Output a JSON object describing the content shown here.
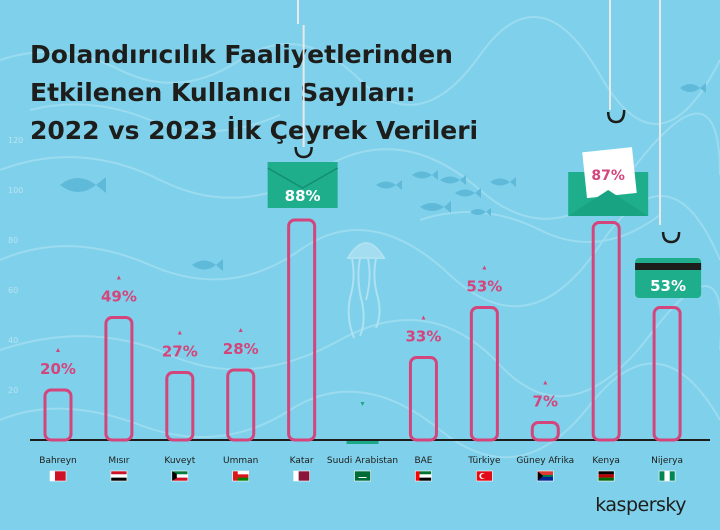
{
  "title_lines": [
    "Dolandırıcılık Faaliyetlerinden",
    "Etkilenen Kullanıcı Sayıları:",
    "2022 vs 2023 İlk Çeyrek Verileri"
  ],
  "brand": "kaspersky",
  "colors": {
    "background": "#7fd0ea",
    "bar_outline": "#d4457c",
    "label": "#d4457c",
    "change_down": "#1aa889",
    "accent_green": "#1fae8c",
    "axis": "#1d1d1b"
  },
  "chart_data": {
    "type": "bar",
    "ylim": [
      0,
      120
    ],
    "y_ticks": [
      20,
      40,
      60,
      80,
      100,
      120
    ],
    "grid": false,
    "categories": [
      "Bahreyn",
      "Mısır",
      "Kuveyt",
      "Umman",
      "Katar",
      "Suudi Arabistan",
      "BAE",
      "Türkiye",
      "Güney Afrika",
      "Kenya",
      "Nijerya"
    ],
    "values": [
      20,
      49,
      27,
      28,
      88,
      0,
      33,
      53,
      7,
      87,
      53
    ],
    "value_labels": [
      "20%",
      "49%",
      "27%",
      "28%",
      "88%",
      "",
      "33%",
      "53%",
      "7%",
      "87%",
      "53%"
    ],
    "direction": [
      "up",
      "up",
      "up",
      "up",
      "up",
      "down",
      "up",
      "up",
      "up",
      "up",
      "up"
    ],
    "flag_icons": [
      "flag-bahrain",
      "flag-egypt",
      "flag-kuwait",
      "flag-oman",
      "flag-qatar",
      "flag-saudi-arabia",
      "flag-uae",
      "flag-turkey",
      "flag-south-africa",
      "flag-kenya",
      "flag-nigeria"
    ],
    "callout_icons": {
      "4": "envelope-bait",
      "9": "email-letter-bait",
      "10": "credit-card-bait"
    }
  }
}
